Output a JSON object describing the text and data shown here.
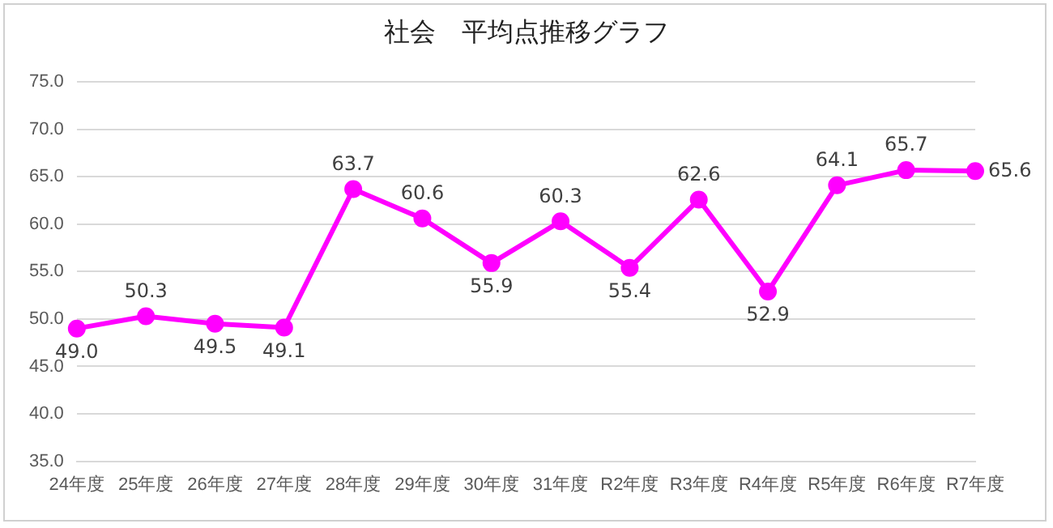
{
  "chart_data": {
    "type": "line",
    "title": "社会　平均点推移グラフ",
    "categories": [
      "24年度",
      "25年度",
      "26年度",
      "27年度",
      "28年度",
      "29年度",
      "30年度",
      "31年度",
      "R2年度",
      "R3年度",
      "R4年度",
      "R5年度",
      "R6年度",
      "R7年度"
    ],
    "series": [
      {
        "color": "#ff00ff",
        "values": [
          49.0,
          50.3,
          49.5,
          49.1,
          63.7,
          60.6,
          55.9,
          60.3,
          55.4,
          62.6,
          52.9,
          64.1,
          65.7,
          65.6
        ],
        "value_labels": [
          "49.0",
          "50.3",
          "49.5",
          "49.1",
          "63.7",
          "60.6",
          "55.9",
          "60.3",
          "55.4",
          "62.6",
          "52.9",
          "64.1",
          "65.7",
          "65.6"
        ]
      }
    ],
    "ylim": [
      35,
      75
    ],
    "yticks": [
      {
        "value": 35,
        "label": "35.0"
      },
      {
        "value": 40,
        "label": "40.0"
      },
      {
        "value": 45,
        "label": "45.0"
      },
      {
        "value": 50,
        "label": "50.0"
      },
      {
        "value": 55,
        "label": "55.0"
      },
      {
        "value": 60,
        "label": "60.0"
      },
      {
        "value": 65,
        "label": "65.0"
      },
      {
        "value": 70,
        "label": "70.0"
      },
      {
        "value": 75,
        "label": "75.0"
      }
    ],
    "grid": "y",
    "legend": false,
    "marker": "circle",
    "line_style": "solid"
  }
}
